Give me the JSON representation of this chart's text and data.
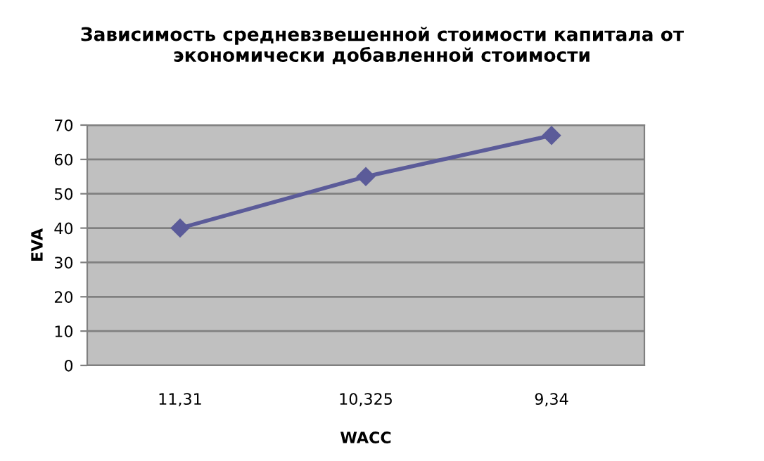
{
  "chart_data": {
    "type": "line",
    "title": "Зависимость средневзвешенной стоимости капитала от экономически добавленной стоимости",
    "xlabel": "WACC",
    "ylabel": "EVA",
    "categories": [
      "11,31",
      "10,325",
      "9,34"
    ],
    "series": [
      {
        "color": "#5b5b99",
        "values": [
          40,
          55,
          67
        ]
      }
    ],
    "ylim": [
      0,
      70
    ],
    "yticks": [
      0,
      10,
      20,
      30,
      40,
      50,
      60,
      70
    ],
    "grid": "y",
    "marker": "diamond",
    "line_style": "solid",
    "legend": false
  }
}
